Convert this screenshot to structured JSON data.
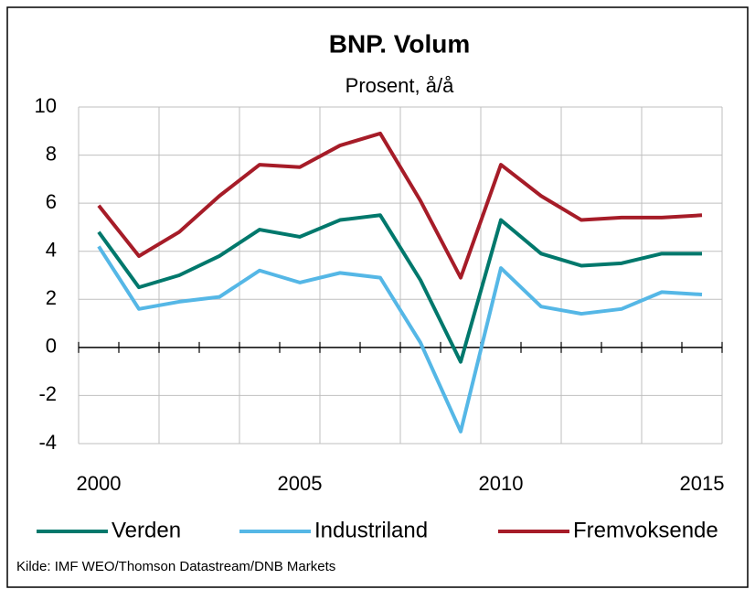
{
  "chart_data": {
    "type": "line",
    "title": "BNP. Volum",
    "subtitle": "Prosent, å/å",
    "categories": [
      "2000",
      null,
      null,
      null,
      null,
      "2005",
      null,
      null,
      null,
      null,
      "2010",
      null,
      null,
      null,
      null,
      "2015"
    ],
    "series": [
      {
        "name": "Verden",
        "color": "#00786c",
        "values": [
          4.8,
          2.5,
          3.0,
          3.8,
          4.9,
          4.6,
          5.3,
          5.5,
          2.8,
          -0.6,
          5.3,
          3.9,
          3.4,
          3.5,
          3.9,
          3.9
        ]
      },
      {
        "name": "Industriland",
        "color": "#55b7e6",
        "values": [
          4.2,
          1.6,
          1.9,
          2.1,
          3.2,
          2.7,
          3.1,
          2.9,
          0.2,
          -3.5,
          3.3,
          1.7,
          1.4,
          1.6,
          2.3,
          2.2
        ]
      },
      {
        "name": "Fremvoksende",
        "color": "#a61c28",
        "values": [
          5.9,
          3.8,
          4.8,
          6.3,
          7.6,
          7.5,
          8.4,
          8.9,
          6.1,
          2.9,
          7.6,
          6.3,
          5.3,
          5.4,
          5.4,
          5.5
        ]
      }
    ],
    "ylim": [
      -4,
      10
    ],
    "yticks": [
      -4,
      -2,
      0,
      2,
      4,
      6,
      8,
      10
    ],
    "grid": true,
    "legend": "bottom",
    "source": "Kilde: IMF WEO/Thomson Datastream/DNB Markets"
  }
}
